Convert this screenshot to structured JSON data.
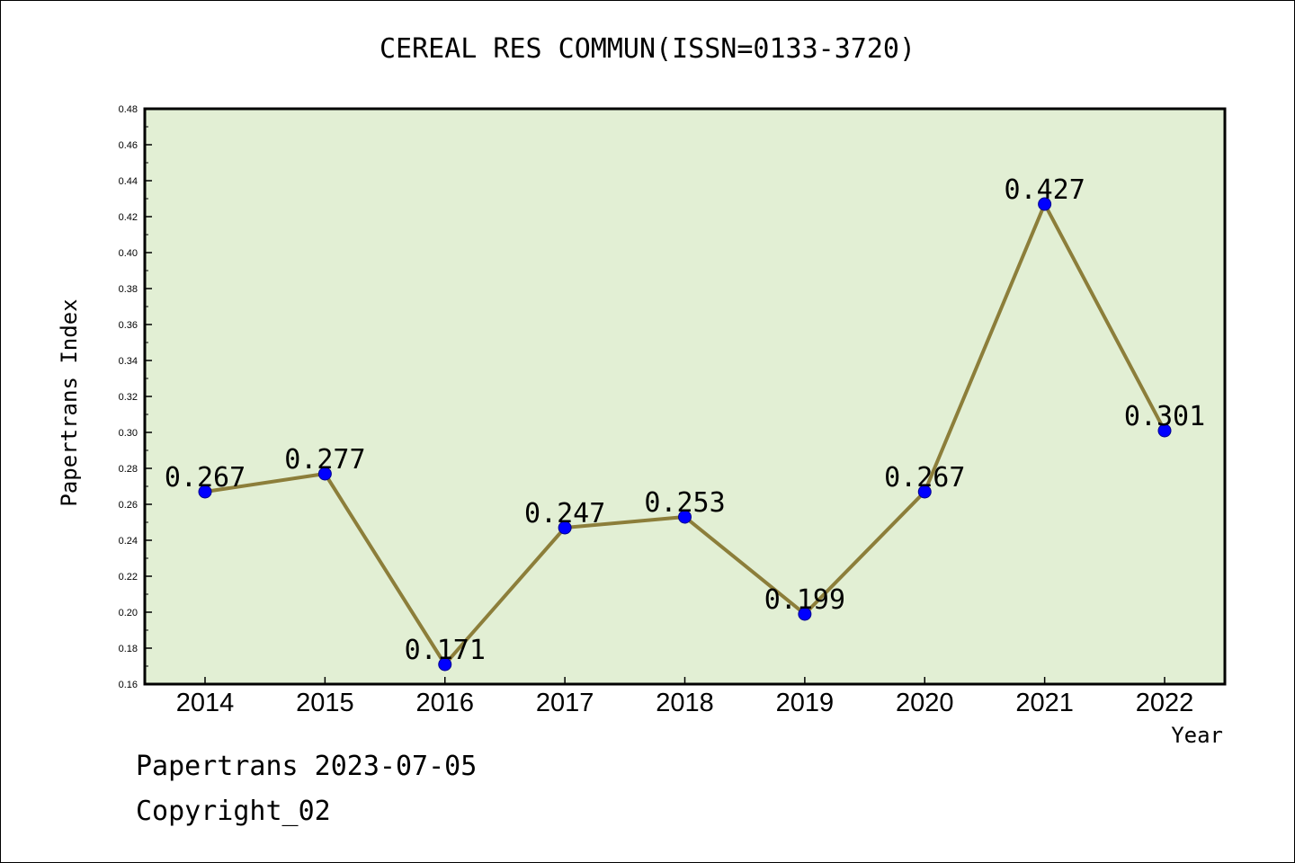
{
  "chart_data": {
    "type": "line",
    "title": "CEREAL RES COMMUN(ISSN=0133-3720)",
    "xlabel": "Year",
    "ylabel": "Papertrans Index",
    "categories": [
      "2014",
      "2015",
      "2016",
      "2017",
      "2018",
      "2019",
      "2020",
      "2021",
      "2022"
    ],
    "values": [
      0.267,
      0.277,
      0.171,
      0.247,
      0.253,
      0.199,
      0.267,
      0.427,
      0.301
    ],
    "data_labels": [
      "0.267",
      "0.277",
      "0.171",
      "0.247",
      "0.253",
      "0.199",
      "0.267",
      "0.427",
      "0.301"
    ],
    "ylim": [
      0.16,
      0.48
    ],
    "yticks": [
      "0.16",
      "0.18",
      "0.20",
      "0.22",
      "0.24",
      "0.26",
      "0.28",
      "0.30",
      "0.32",
      "0.34",
      "0.36",
      "0.38",
      "0.40",
      "0.42",
      "0.44",
      "0.46",
      "0.48"
    ],
    "grid": false,
    "legend": "none",
    "colors": {
      "plot_background": "#e2efd4",
      "line": "#8c7e3a",
      "marker_fill": "#0000ff",
      "marker_stroke": "#00008b",
      "axis": "#000000"
    }
  },
  "footer": {
    "line1": "Papertrans 2023-07-05",
    "line2": "Copyright_02"
  }
}
